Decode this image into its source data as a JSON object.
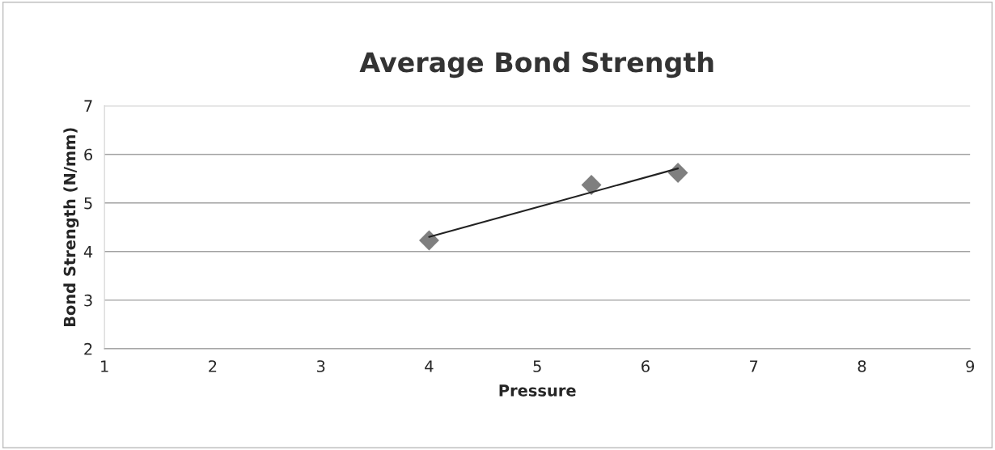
{
  "chart_data": {
    "type": "scatter",
    "title": "Average Bond Strength",
    "xlabel": "Pressure",
    "ylabel": "Bond Strength (N/mm)",
    "xlim": [
      1,
      9
    ],
    "xticks": [
      1,
      2,
      3,
      4,
      5,
      6,
      7,
      8,
      9
    ],
    "ylim": [
      2,
      7
    ],
    "yticks": [
      2,
      3,
      4,
      5,
      6,
      7
    ],
    "grid": "y",
    "legend": false,
    "marker": "diamond",
    "series": [
      {
        "color": "#7f7f7f",
        "x": [
          4,
          5.5,
          6.3
        ],
        "values": [
          4.23,
          5.37,
          5.62
        ]
      },
      {
        "type": "line",
        "color": "#222222",
        "x": [
          4,
          6.3
        ],
        "values": [
          4.3,
          5.71
        ],
        "marker": "none"
      }
    ]
  }
}
